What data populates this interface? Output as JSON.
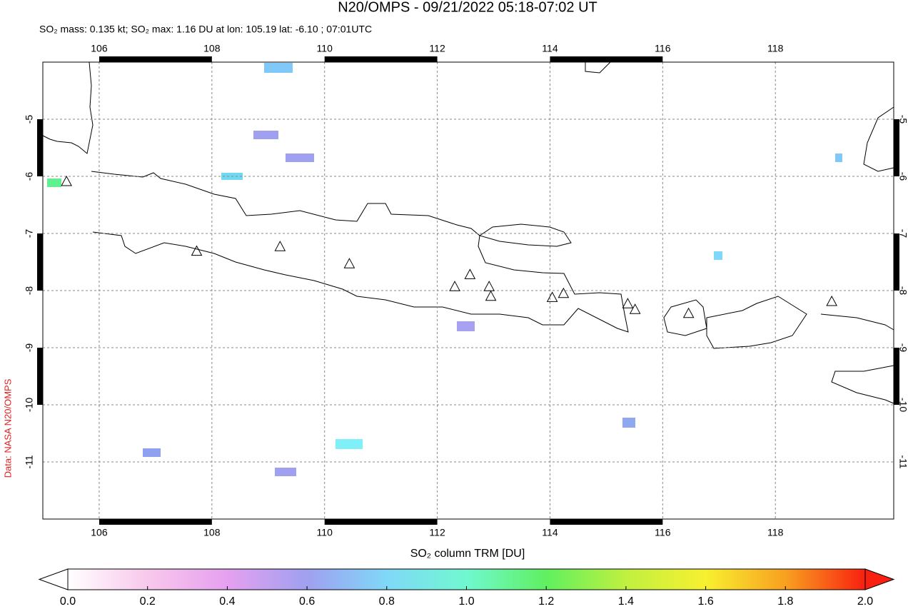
{
  "chart_data": {
    "type": "map",
    "title": "N20/OMPS - 09/21/2022 05:18-07:02 UT",
    "subtitle": "SO₂ mass: 0.135 kt; SO₂ max: 1.16 DU at lon: 105.19 lat: -6.10 ; 07:01UTC",
    "side_label": "Data: NASA N20/OMPS",
    "xlim": [
      105,
      120.1
    ],
    "ylim": [
      -12,
      -4
    ],
    "xticks": [
      106,
      108,
      110,
      112,
      114,
      116,
      118
    ],
    "yticks": [
      -5,
      -6,
      -7,
      -8,
      -9,
      -10,
      -11
    ],
    "grid": true,
    "volcanoes": {
      "lon": [
        105.42,
        107.73,
        109.21,
        110.44,
        112.31,
        112.58,
        112.92,
        112.95,
        114.04,
        114.24,
        115.38,
        115.51,
        116.46,
        119.0
      ],
      "lat": [
        -6.1,
        -7.32,
        -7.24,
        -7.54,
        -7.94,
        -7.73,
        -7.94,
        -8.11,
        -8.13,
        -8.06,
        -8.24,
        -8.34,
        -8.41,
        -8.2
      ]
    },
    "colorbar": {
      "label": "SO₂ column TRM [DU]",
      "lim": [
        0,
        2
      ],
      "colors": [
        "#ffffff",
        "#f8c8ec",
        "#e6a0f0",
        "#a0a0f0",
        "#80d8f8",
        "#70f8d0",
        "#60f060",
        "#c0f040",
        "#f8f030",
        "#f8a020",
        "#f82010"
      ],
      "ticks": [
        {
          "value": 0,
          "label": "0.0"
        },
        {
          "value": 0.2,
          "label": "0.2"
        },
        {
          "value": 0.4,
          "label": "0.4"
        },
        {
          "value": 0.6,
          "label": "0.6"
        },
        {
          "value": 0.8,
          "label": "0.8"
        },
        {
          "value": 1,
          "label": "1.0"
        },
        {
          "value": 1.2,
          "label": "1.2"
        },
        {
          "value": 1.4,
          "label": "1.4"
        },
        {
          "value": 1.6,
          "label": "1.6"
        },
        {
          "value": 1.8,
          "label": "1.8"
        },
        {
          "value": 2,
          "label": "2.0"
        }
      ]
    }
  }
}
